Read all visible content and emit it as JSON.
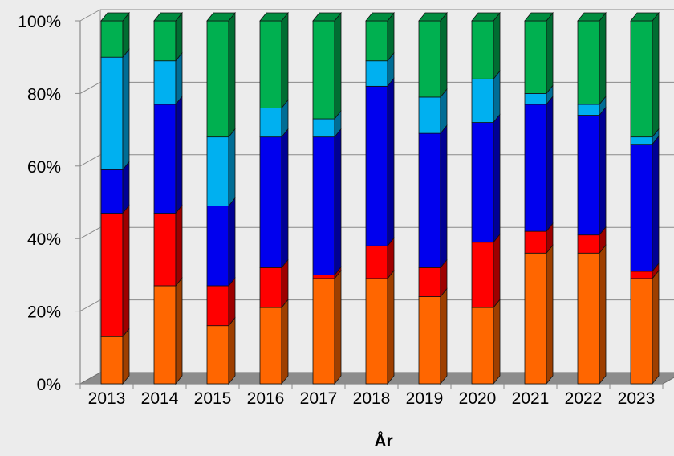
{
  "chart_data": {
    "type": "bar",
    "stacked": true,
    "percent_stacked": true,
    "three_d": true,
    "title": "",
    "xlabel": "År",
    "ylabel": "",
    "ylim": [
      0,
      100
    ],
    "y_ticks": [
      "0%",
      "20%",
      "40%",
      "60%",
      "80%",
      "100%"
    ],
    "grid": true,
    "legend": "none",
    "categories": [
      "2013",
      "2014",
      "2015",
      "2016",
      "2017",
      "2018",
      "2019",
      "2020",
      "2021",
      "2022",
      "2023"
    ],
    "series": [
      {
        "color": "#ff6600",
        "values": [
          13,
          27,
          16,
          21,
          29,
          29,
          24,
          21,
          36,
          36,
          29
        ]
      },
      {
        "color": "#ff0000",
        "values": [
          34,
          20,
          11,
          11,
          1,
          9,
          8,
          18,
          6,
          5,
          2
        ]
      },
      {
        "color": "#0000ee",
        "values": [
          12,
          30,
          22,
          36,
          38,
          44,
          37,
          33,
          35,
          33,
          35
        ]
      },
      {
        "color": "#00b0f0",
        "values": [
          31,
          12,
          19,
          8,
          5,
          7,
          10,
          12,
          3,
          3,
          2
        ]
      },
      {
        "color": "#00b050",
        "values": [
          10,
          11,
          32,
          24,
          27,
          11,
          21,
          16,
          20,
          23,
          32
        ]
      }
    ]
  }
}
